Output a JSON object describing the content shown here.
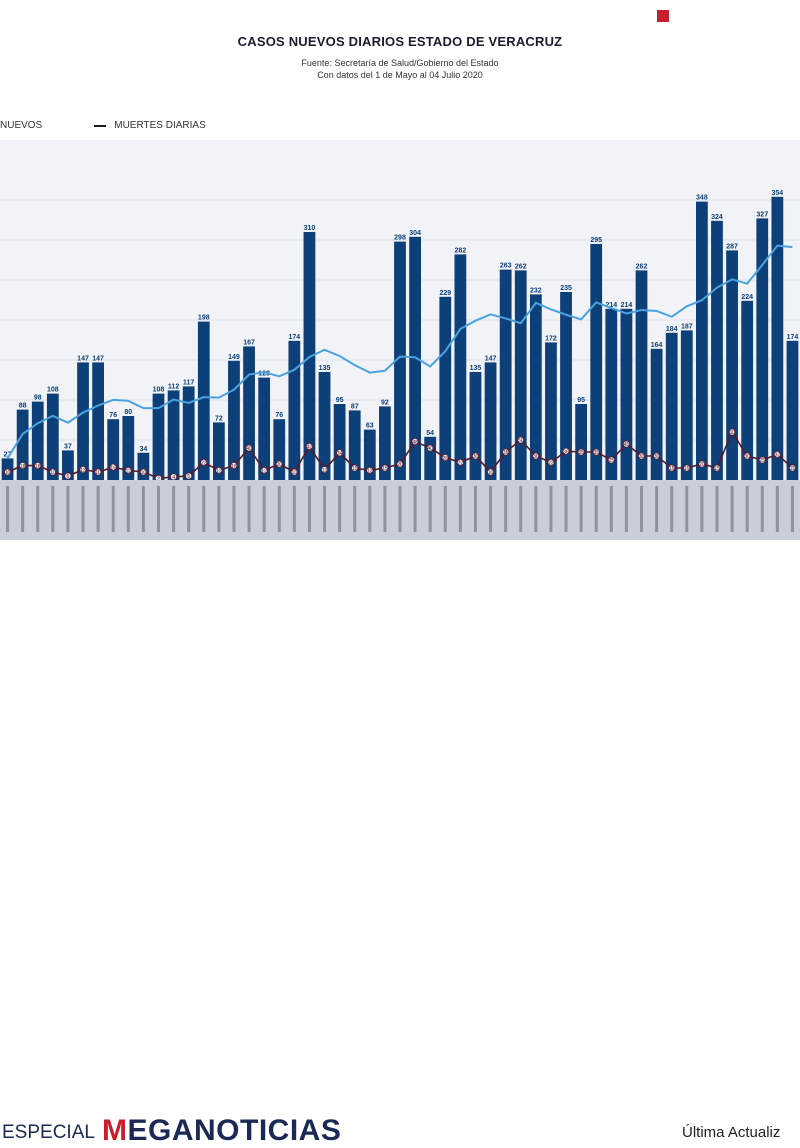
{
  "header": {
    "title": "CASOS NUEVOS DIARIOS ESTADO DE VERACRUZ",
    "source": "Fuente: Secretaría de Salud/Gobierno del Estado",
    "date_range": "Con datos del 1 de Mayo al 04 Julio 2020"
  },
  "legend": {
    "new_cases": "NUEVOS",
    "daily_deaths": "MUERTES DIARIAS"
  },
  "footer": {
    "especial": "ESPECIAL",
    "brand": "MEGANOTICIAS",
    "update": "Última Actualiz"
  },
  "colors": {
    "bar": "#0d3f78",
    "trend": "#4aa3df",
    "deaths": "#5a1a2a",
    "plot_background": "#f1f3f7",
    "brand_red": "#c8202a"
  },
  "chart_data": {
    "type": "bar",
    "title": "CASOS NUEVOS DIARIOS ESTADO DE VERACRUZ",
    "ylim": [
      0,
      600
    ],
    "grid": true,
    "legend_position": "top-left",
    "series": [
      {
        "name": "NUEVOS",
        "type": "bar",
        "values": [
          27,
          88,
          98,
          108,
          37,
          147,
          147,
          76,
          80,
          34,
          108,
          112,
          117,
          198,
          72,
          149,
          167,
          128,
          76,
          174,
          310,
          135,
          95,
          87,
          63,
          92,
          298,
          304,
          54,
          229,
          282,
          135,
          147,
          263,
          262,
          232,
          172,
          235,
          95,
          295,
          214,
          214,
          262,
          164,
          184,
          187,
          348,
          324,
          287,
          224,
          327,
          354,
          174
        ]
      },
      {
        "name": "MUERTES DIARIAS",
        "type": "line",
        "values": [
          10,
          18,
          18,
          10,
          5,
          13,
          10,
          16,
          12,
          10,
          2,
          4,
          5,
          22,
          12,
          18,
          40,
          12,
          20,
          10,
          42,
          13,
          34,
          15,
          12,
          15,
          20,
          48,
          40,
          28,
          22,
          30,
          10,
          35,
          50,
          30,
          22,
          36,
          35,
          35,
          25,
          45,
          30,
          30,
          15,
          15,
          20,
          15,
          60,
          30,
          25,
          32,
          15
        ]
      }
    ]
  }
}
